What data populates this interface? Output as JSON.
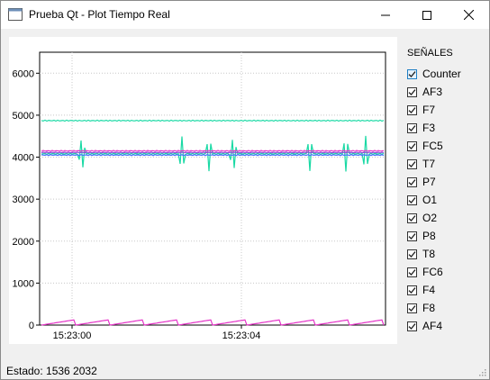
{
  "window": {
    "title": "Prueba Qt - Plot Tiempo Real"
  },
  "titlebar": {
    "minimize": "minimize",
    "maximize": "maximize",
    "close": "close"
  },
  "signals": {
    "heading": "SEÑALES",
    "items": [
      {
        "label": "Counter",
        "checked": true
      },
      {
        "label": "AF3",
        "checked": true
      },
      {
        "label": "F7",
        "checked": true
      },
      {
        "label": "F3",
        "checked": true
      },
      {
        "label": "FC5",
        "checked": true
      },
      {
        "label": "T7",
        "checked": true
      },
      {
        "label": "P7",
        "checked": true
      },
      {
        "label": "O1",
        "checked": true
      },
      {
        "label": "O2",
        "checked": true
      },
      {
        "label": "P8",
        "checked": true
      },
      {
        "label": "T8",
        "checked": true
      },
      {
        "label": "FC6",
        "checked": true
      },
      {
        "label": "F4",
        "checked": true
      },
      {
        "label": "F8",
        "checked": true
      },
      {
        "label": "AF4",
        "checked": true
      }
    ]
  },
  "status": {
    "text": "Estado: 1536 2032"
  },
  "chart_data": {
    "type": "line",
    "title": "",
    "xlabel": "",
    "ylabel": "",
    "ylim": [
      0,
      6500
    ],
    "yticks": [
      0,
      1000,
      2000,
      3000,
      4000,
      5000,
      6000
    ],
    "ytick_labels": [
      "0",
      "1000",
      "2000",
      "3000",
      "4000",
      "5000",
      "6000"
    ],
    "xticks": [
      "15:23:00",
      "15:23:04"
    ],
    "grid": true,
    "colors": {
      "green": "#19d9a4",
      "magenta": "#e535c8",
      "blue": "#4a6fff",
      "purple": "#8a4fd6"
    },
    "series": [
      {
        "level": 4870,
        "color": "#19d9a4",
        "spikes": false
      },
      {
        "level": 4080,
        "color": "#19d9a4",
        "spikes": true
      },
      {
        "level": 4150,
        "color": "#e535c8",
        "spikes": false
      },
      {
        "level": 4110,
        "color": "#8a4fd6",
        "spikes": false
      },
      {
        "level": 4050,
        "color": "#4a6fff",
        "spikes": false
      },
      {
        "level": 0,
        "color": "#e535c8",
        "sawtooth_peak": 130
      }
    ]
  }
}
